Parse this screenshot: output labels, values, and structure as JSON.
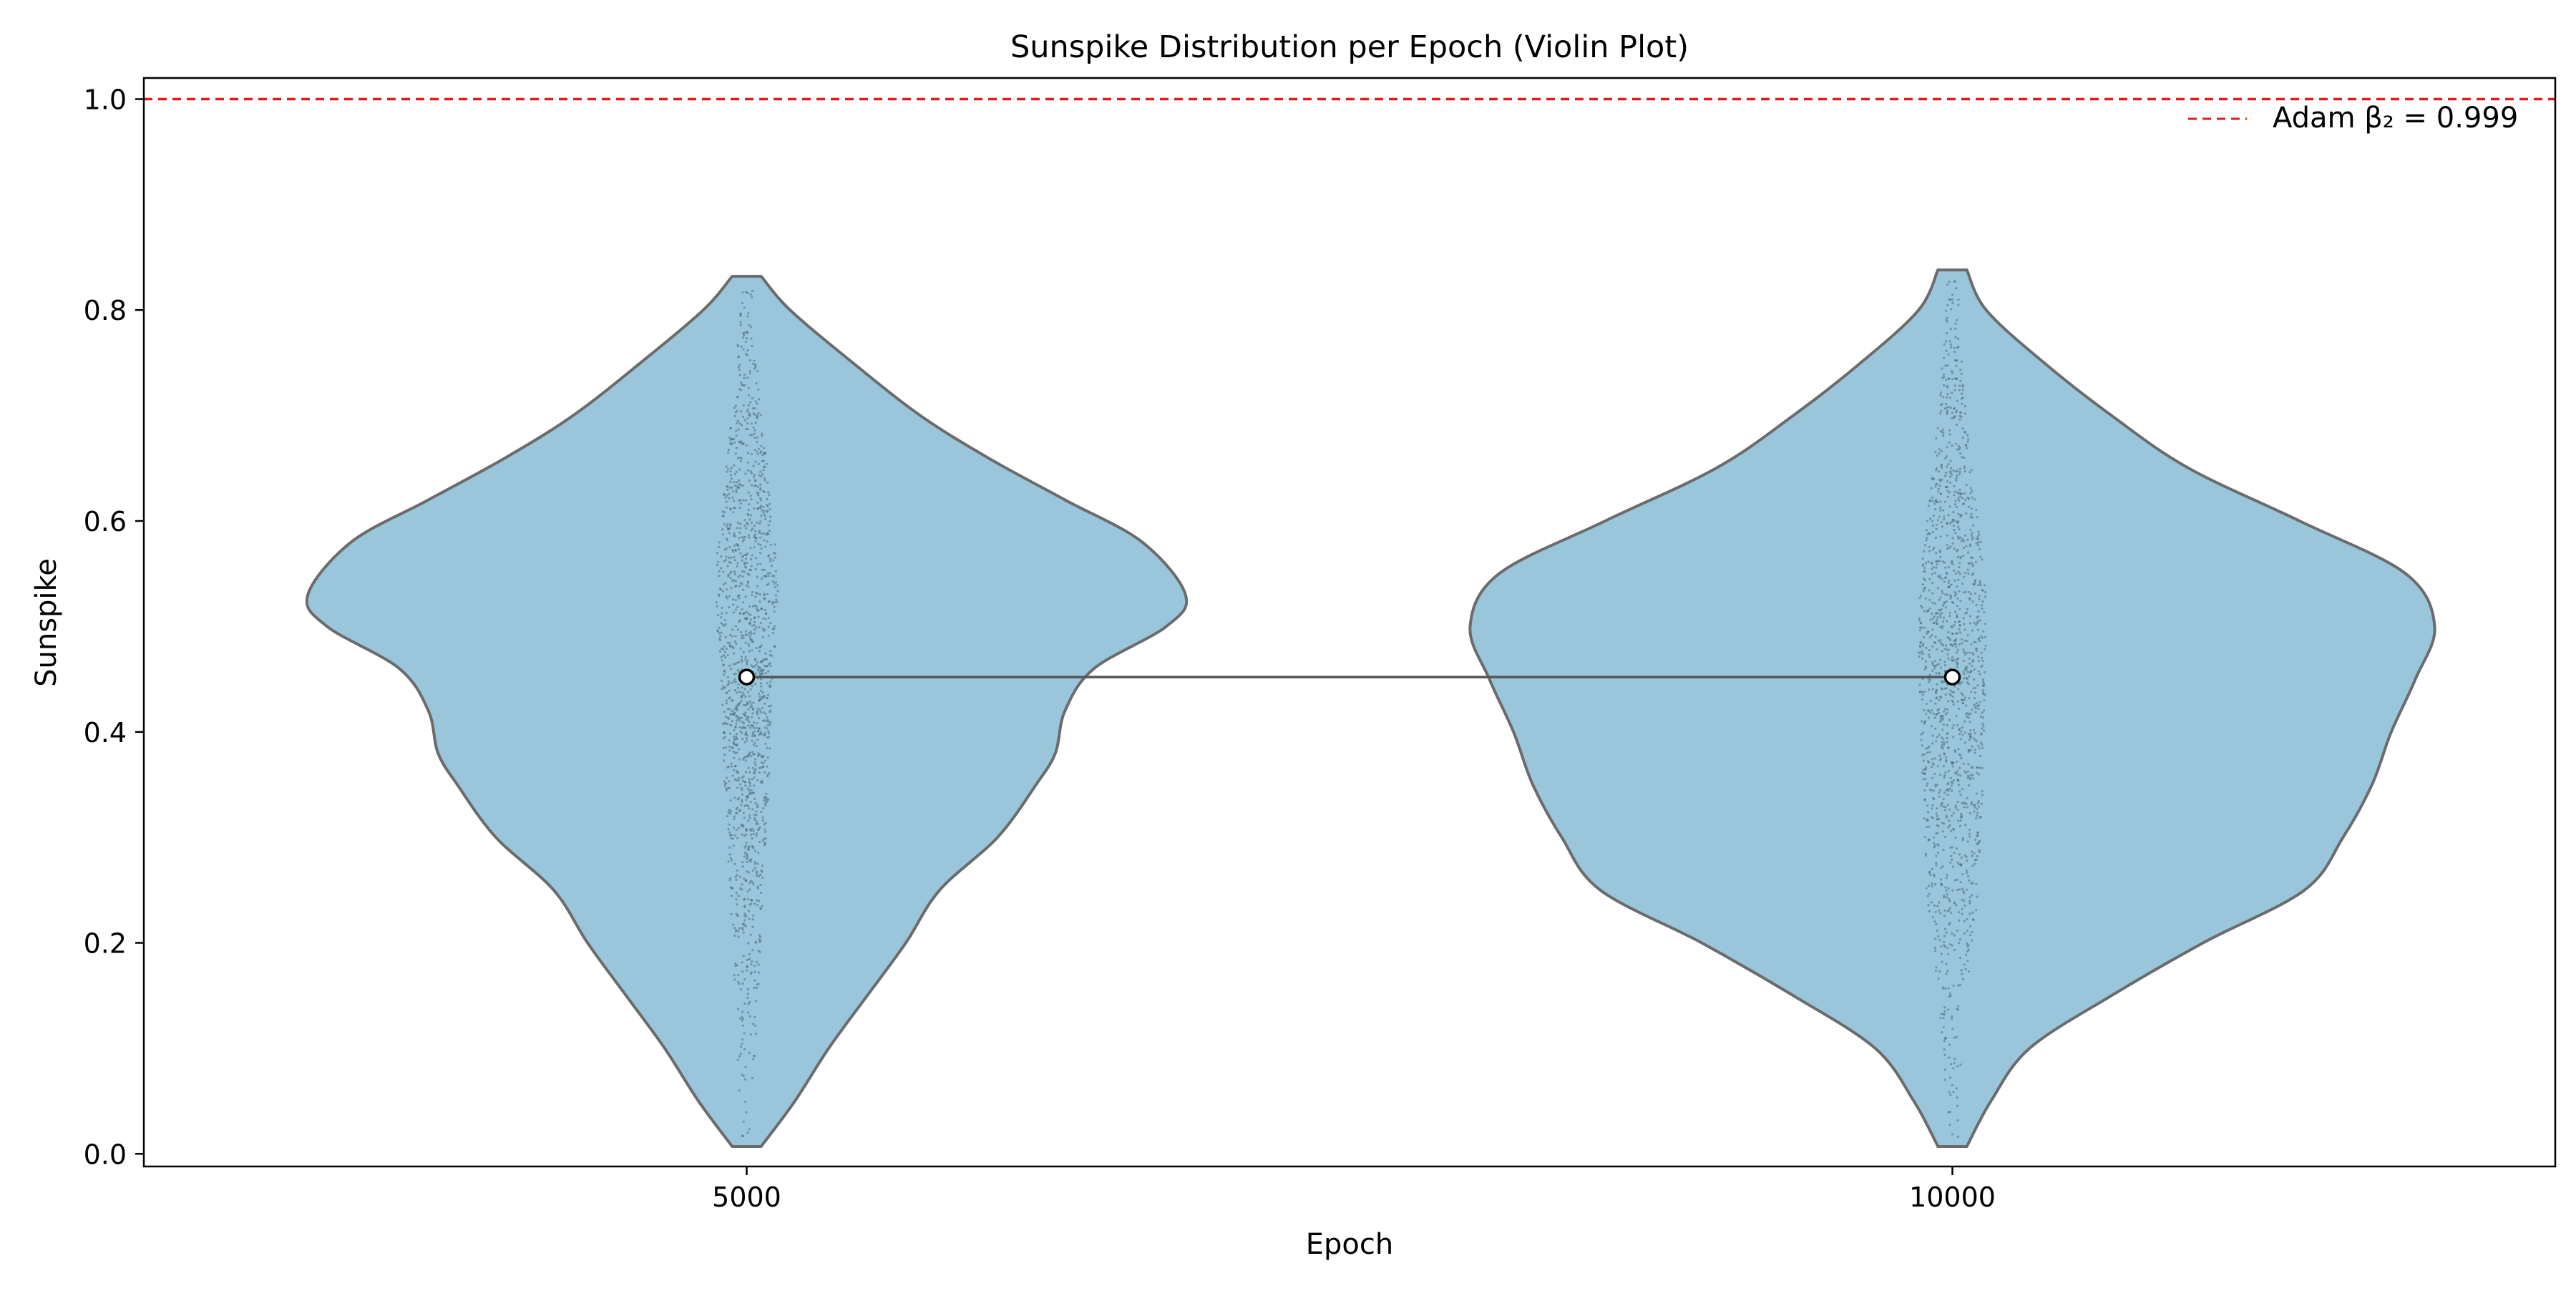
{
  "chart_data": {
    "type": "violin",
    "title": "Sunspike Distribution per Epoch (Violin Plot)",
    "xlabel": "Epoch",
    "ylabel": "Sunspike",
    "categories": [
      "5000",
      "10000"
    ],
    "ylim": [
      -0.012,
      1.02
    ],
    "yticks": [
      0.0,
      0.2,
      0.4,
      0.6,
      0.8,
      1.0
    ],
    "ytick_labels": [
      "0.0",
      "0.2",
      "0.4",
      "0.6",
      "0.8",
      "1.0"
    ],
    "grid": false,
    "series": [
      {
        "category": "5000",
        "mean": 0.452,
        "min": 0.007,
        "max": 0.832,
        "density_profile": [
          [
            0.007,
            0.03
          ],
          [
            0.05,
            0.1
          ],
          [
            0.1,
            0.17
          ],
          [
            0.15,
            0.25
          ],
          [
            0.2,
            0.33
          ],
          [
            0.25,
            0.4
          ],
          [
            0.3,
            0.52
          ],
          [
            0.35,
            0.6
          ],
          [
            0.38,
            0.64
          ],
          [
            0.42,
            0.66
          ],
          [
            0.46,
            0.72
          ],
          [
            0.5,
            0.87
          ],
          [
            0.53,
            0.91
          ],
          [
            0.58,
            0.82
          ],
          [
            0.62,
            0.66
          ],
          [
            0.66,
            0.5
          ],
          [
            0.7,
            0.36
          ],
          [
            0.75,
            0.22
          ],
          [
            0.8,
            0.09
          ],
          [
            0.832,
            0.03
          ]
        ]
      },
      {
        "category": "10000",
        "mean": 0.452,
        "min": 0.007,
        "max": 0.838,
        "density_profile": [
          [
            0.007,
            0.03
          ],
          [
            0.05,
            0.08
          ],
          [
            0.1,
            0.16
          ],
          [
            0.15,
            0.33
          ],
          [
            0.2,
            0.52
          ],
          [
            0.25,
            0.73
          ],
          [
            0.3,
            0.81
          ],
          [
            0.35,
            0.87
          ],
          [
            0.4,
            0.91
          ],
          [
            0.45,
            0.96
          ],
          [
            0.5,
            1.0
          ],
          [
            0.55,
            0.94
          ],
          [
            0.6,
            0.72
          ],
          [
            0.65,
            0.49
          ],
          [
            0.7,
            0.33
          ],
          [
            0.75,
            0.19
          ],
          [
            0.8,
            0.07
          ],
          [
            0.838,
            0.03
          ]
        ]
      }
    ],
    "mean_line": {
      "values": [
        0.452,
        0.452
      ]
    },
    "reference_line": {
      "y": 1.0,
      "label": "Adam β₂ = 0.999",
      "color": "#e31a1c",
      "style": "dashed"
    },
    "legend": {
      "placement": "top-right",
      "entries": [
        "Adam β₂ = 0.999"
      ]
    },
    "colors": {
      "violin_fill": "#9ac6dc",
      "violin_edge": "#6b6b6b",
      "points": "#4a6b7c",
      "mean_line": "#555555"
    }
  }
}
